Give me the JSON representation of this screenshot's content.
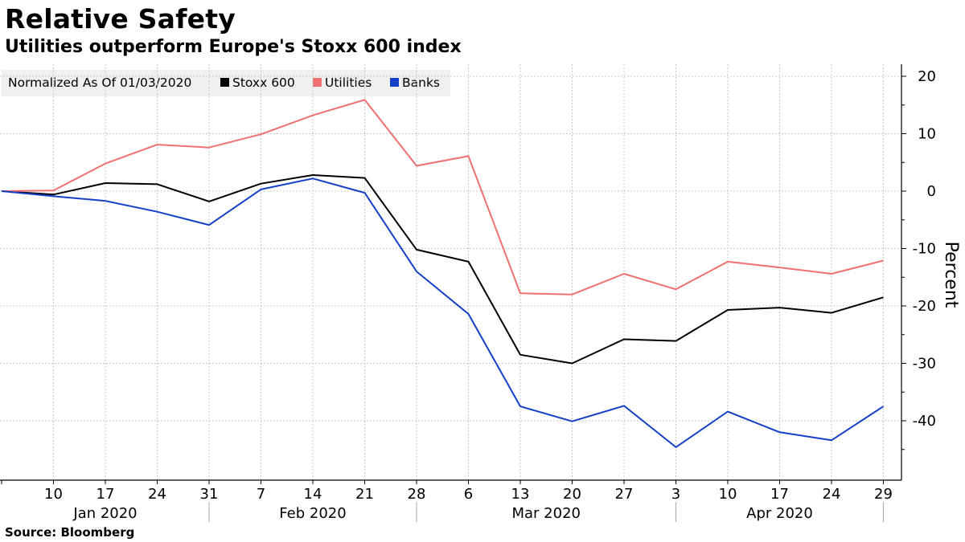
{
  "title": "Relative Safety",
  "subtitle": "Utilities outperform Europe's Stoxx 600 index",
  "source": "Source: Bloomberg",
  "chart_data": {
    "type": "line",
    "legend": {
      "heading": "Normalized As Of 01/03/2020",
      "position": "top-left"
    },
    "ylabel": "Percent",
    "ylim": [
      -50,
      22
    ],
    "yticks": [
      20,
      10,
      0,
      -10,
      -20,
      -30,
      -40
    ],
    "y_tick_labels": [
      "20",
      "10",
      "0",
      "-10",
      "-20",
      "-30",
      "-40"
    ],
    "grid": true,
    "x": [
      "Jan 3",
      "Jan 10",
      "Jan 17",
      "Jan 24",
      "Jan 31",
      "Feb 7",
      "Feb 14",
      "Feb 21",
      "Feb 28",
      "Mar 6",
      "Mar 13",
      "Mar 20",
      "Mar 27",
      "Apr 3",
      "Apr 10",
      "Apr 17",
      "Apr 24",
      "Apr 29"
    ],
    "x_tick_labels": [
      "",
      "10",
      "17",
      "24",
      "31",
      "7",
      "14",
      "21",
      "28",
      "6",
      "13",
      "20",
      "27",
      "3",
      "10",
      "17",
      "24",
      "29"
    ],
    "month_labels": [
      {
        "label": "Jan 2020",
        "start": 0,
        "end": 4
      },
      {
        "label": "Feb 2020",
        "start": 4,
        "end": 8
      },
      {
        "label": "Mar 2020",
        "start": 8,
        "end": 13
      },
      {
        "label": "Apr 2020",
        "start": 13,
        "end": 17
      }
    ],
    "series": [
      {
        "name": "Stoxx 600",
        "color": "#000000",
        "values": [
          0,
          -0.6,
          1.4,
          1.2,
          -1.8,
          1.3,
          2.8,
          2.3,
          -10.2,
          -12.3,
          -28.5,
          -30.0,
          -25.8,
          -26.1,
          -20.7,
          -20.3,
          -21.2,
          -18.5
        ]
      },
      {
        "name": "Utilities",
        "color": "#f07070",
        "values": [
          0,
          0.1,
          4.8,
          8.1,
          7.6,
          9.9,
          13.2,
          15.9,
          4.4,
          6.1,
          -17.8,
          -18.0,
          -14.4,
          -17.1,
          -12.3,
          -13.3,
          -14.4,
          -12.1
        ]
      },
      {
        "name": "Banks",
        "color": "#1440c8",
        "values": [
          0,
          -0.9,
          -1.7,
          -3.6,
          -5.9,
          0.3,
          2.2,
          -0.3,
          -14.0,
          -21.4,
          -37.5,
          -40.1,
          -37.4,
          -44.6,
          -38.4,
          -42.0,
          -43.4,
          -37.5
        ]
      }
    ]
  }
}
